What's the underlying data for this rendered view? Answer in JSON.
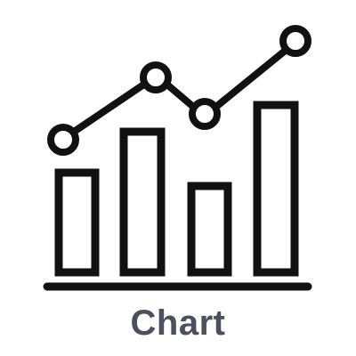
{
  "icon": {
    "name": "bar-line-chart-icon",
    "stroke_color": "#111111",
    "fill_color": "#ffffff"
  },
  "caption": {
    "text": "Chart",
    "color": "#4a505d"
  }
}
